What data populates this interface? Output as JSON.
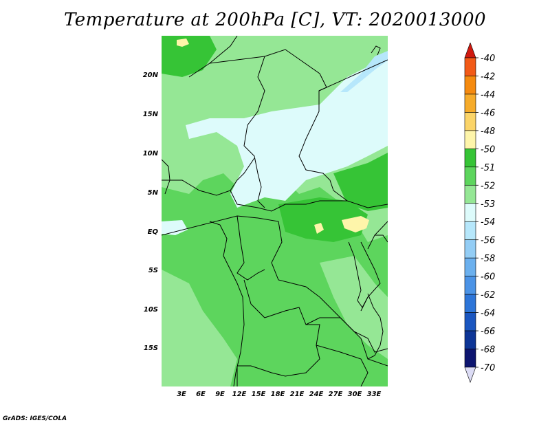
{
  "title": "Temperature at 200hPa [C], VT: 2020013000",
  "credit": "GrADS: IGES/COLA",
  "lat_labels": [
    "20N",
    "15N",
    "10N",
    "5N",
    "EQ",
    "5S",
    "10S",
    "15S"
  ],
  "lon_labels": [
    "3E",
    "6E",
    "9E",
    "12E",
    "15E",
    "18E",
    "21E",
    "24E",
    "27E",
    "30E",
    "33E"
  ],
  "colorbar": {
    "labels": [
      "-40",
      "-42",
      "-44",
      "-46",
      "-48",
      "-50",
      "-51",
      "-52",
      "-53",
      "-54",
      "-56",
      "-58",
      "-60",
      "-62",
      "-64",
      "-66",
      "-68",
      "-70"
    ],
    "colors": [
      "#e8241c",
      "#f25a17",
      "#f58a0f",
      "#f6ab2a",
      "#fbd468",
      "#fef5aa",
      "#36c436",
      "#5dd55d",
      "#95e795",
      "#ddfbfb",
      "#b6e7fb",
      "#93cdf5",
      "#6bb0ee",
      "#4b93e6",
      "#2d75d8",
      "#1a56c0",
      "#0d3596",
      "#0d1570"
    ],
    "top_arrow_color": "#d01a10",
    "bottom_arrow_color": "#dcdcf5"
  },
  "map_colors": {
    "level_52": "#36c436",
    "level_53": "#5dd55d",
    "level_54": "#95e795",
    "level_56": "#ddfbfb",
    "level_58": "#b6e7fb",
    "level_60": "#93cdf5",
    "level_50": "#fef5aa"
  }
}
